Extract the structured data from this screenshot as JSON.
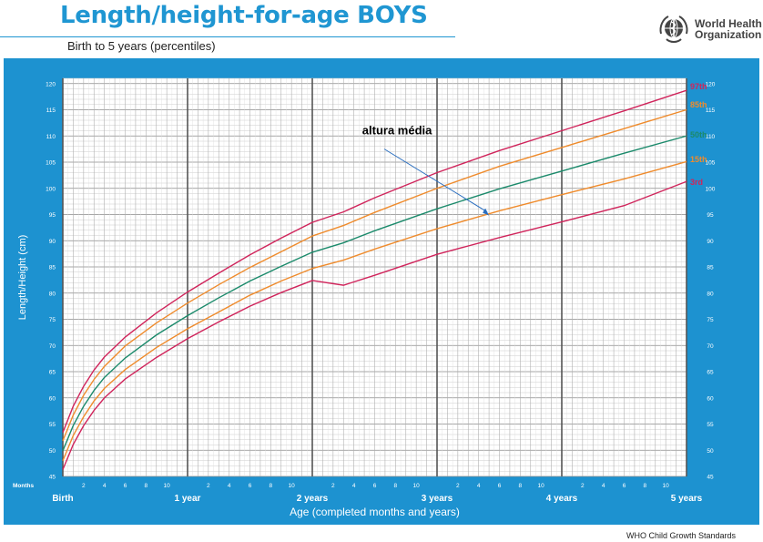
{
  "header": {
    "title": "Length/height-for-age BOYS",
    "subtitle": "Birth to 5 years (percentiles)",
    "logo_line1": "World Health",
    "logo_line2": "Organization"
  },
  "footer": {
    "source": "WHO Child Growth Standards"
  },
  "colors": {
    "panel": "#1d92d0",
    "grid_bg": "#ffffff",
    "red": "#d0245b",
    "orange": "#ef8b2c",
    "green": "#1b8a6b",
    "annotation": "#2b6fc0"
  },
  "chart_data": {
    "type": "line",
    "xlabel": "Age (completed months and years)",
    "ylabel": "Length/Height (cm)",
    "x_unit": "months",
    "xlim": [
      0,
      60
    ],
    "ylim": [
      45,
      121
    ],
    "y_ticks": [
      45,
      50,
      55,
      60,
      65,
      70,
      75,
      80,
      85,
      90,
      95,
      100,
      105,
      110,
      115,
      120
    ],
    "months_label": "Months",
    "year_labels": [
      {
        "month": 0,
        "label": "Birth"
      },
      {
        "month": 12,
        "label": "1 year"
      },
      {
        "month": 24,
        "label": "2 years"
      },
      {
        "month": 36,
        "label": "3 years"
      },
      {
        "month": 48,
        "label": "4 years"
      },
      {
        "month": 60,
        "label": "5 years"
      }
    ],
    "month_tick_labels": [
      "2",
      "4",
      "6",
      "8",
      "10"
    ],
    "grid": true,
    "x": [
      0,
      1,
      2,
      3,
      4,
      6,
      9,
      12,
      15,
      18,
      21,
      24,
      27,
      30,
      36,
      42,
      48,
      54,
      60
    ],
    "series": [
      {
        "name": "97th",
        "color": "#d0245b",
        "values": [
          53.4,
          58.4,
          62.2,
          65.3,
          67.8,
          71.6,
          76.2,
          80.2,
          83.8,
          87.3,
          90.5,
          93.5,
          95.5,
          98.2,
          103.0,
          107.2,
          111.0,
          114.8,
          118.7
        ],
        "label_value": 119.4
      },
      {
        "name": "85th",
        "color": "#ef8b2c",
        "values": [
          51.8,
          56.7,
          60.5,
          63.5,
          66.0,
          69.9,
          74.3,
          78.1,
          81.6,
          84.9,
          87.9,
          90.9,
          92.9,
          95.4,
          100.0,
          104.2,
          107.8,
          111.4,
          115.0
        ],
        "label_value": 116.0
      },
      {
        "name": "50th",
        "color": "#1b8a6b",
        "values": [
          49.9,
          54.7,
          58.4,
          61.4,
          63.9,
          67.6,
          72.0,
          75.7,
          79.1,
          82.3,
          85.1,
          87.8,
          89.6,
          91.9,
          96.1,
          99.9,
          103.3,
          106.7,
          110.0
        ],
        "label_value": 110.2
      },
      {
        "name": "15th",
        "color": "#ef8b2c",
        "values": [
          48.0,
          52.8,
          56.4,
          59.4,
          61.8,
          65.4,
          69.6,
          73.2,
          76.4,
          79.6,
          82.3,
          84.7,
          86.3,
          88.4,
          92.3,
          95.7,
          98.8,
          101.8,
          105.1
        ],
        "label_value": 105.5
      },
      {
        "name": "3rd",
        "color": "#d0245b",
        "values": [
          46.3,
          51.1,
          54.7,
          57.6,
          60.0,
          63.6,
          67.7,
          71.3,
          74.5,
          77.5,
          80.1,
          82.4,
          81.5,
          83.4,
          87.4,
          90.6,
          93.6,
          96.7,
          101.3
        ],
        "label_value": 101.2
      }
    ],
    "annotation": {
      "text": "altura média",
      "target_x": 41,
      "target_y": 94.8
    }
  }
}
